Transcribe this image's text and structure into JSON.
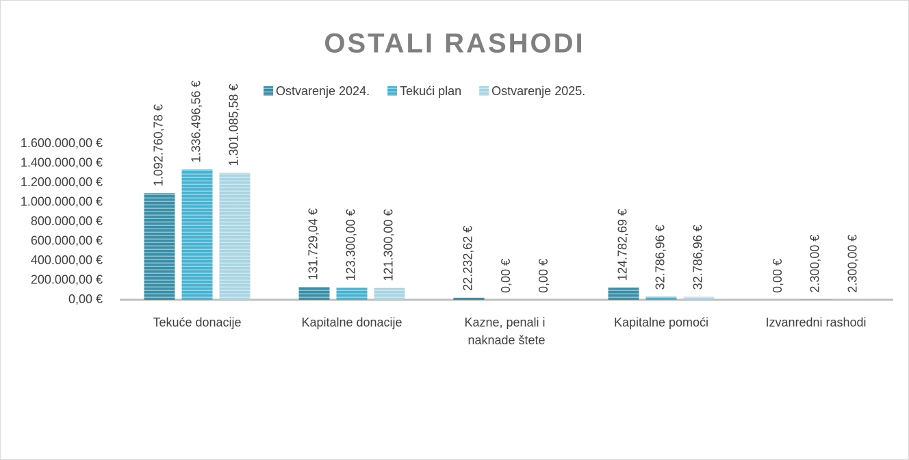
{
  "chart_data": {
    "type": "bar",
    "title": "OSTALI RASHODI",
    "categories": [
      "Tekuće donacije",
      "Kapitalne donacije",
      "Kazne, penali i naknade štete",
      "Kapitalne pomoći",
      "Izvanredni rashodi"
    ],
    "series": [
      {
        "name": "Ostvarenje 2024.",
        "color": "#3a8fa8",
        "values": [
          1092760.78,
          131729.04,
          22232.62,
          124782.69,
          0
        ],
        "value_labels": [
          "1.092.760,78 €",
          "131.729,04 €",
          "22.232,62 €",
          "124.782,69 €",
          "0,00 €"
        ]
      },
      {
        "name": "Tekući plan",
        "color": "#45b3d1",
        "values": [
          1336496.56,
          123300,
          0,
          32786.96,
          2300
        ],
        "value_labels": [
          "1.336.496,56 €",
          "123.300,00 €",
          "0,00 €",
          "32.786,96 €",
          "2.300,00 €"
        ]
      },
      {
        "name": "Ostvarenje 2025.",
        "color": "#a9d5e2",
        "values": [
          1301085.58,
          121300,
          0,
          32786.96,
          2300
        ],
        "value_labels": [
          "1.301.085,58 €",
          "121.300,00 €",
          "0,00 €",
          "32.786,96 €",
          "2.300,00 €"
        ]
      }
    ],
    "ylim": [
      0,
      1600000
    ],
    "yticks": [
      {
        "value": 0,
        "label": "0,00 €"
      },
      {
        "value": 200000,
        "label": "200.000,00 €"
      },
      {
        "value": 400000,
        "label": "400.000,00 €"
      },
      {
        "value": 600000,
        "label": "600.000,00 €"
      },
      {
        "value": 800000,
        "label": "800.000,00 €"
      },
      {
        "value": 1000000,
        "label": "1.000.000,00 €"
      },
      {
        "value": 1200000,
        "label": "1.200.000,00 €"
      },
      {
        "value": 1400000,
        "label": "1.400.000,00 €"
      },
      {
        "value": 1600000,
        "label": "1.600.000,00 €"
      }
    ],
    "grid": false,
    "legend": "top"
  }
}
